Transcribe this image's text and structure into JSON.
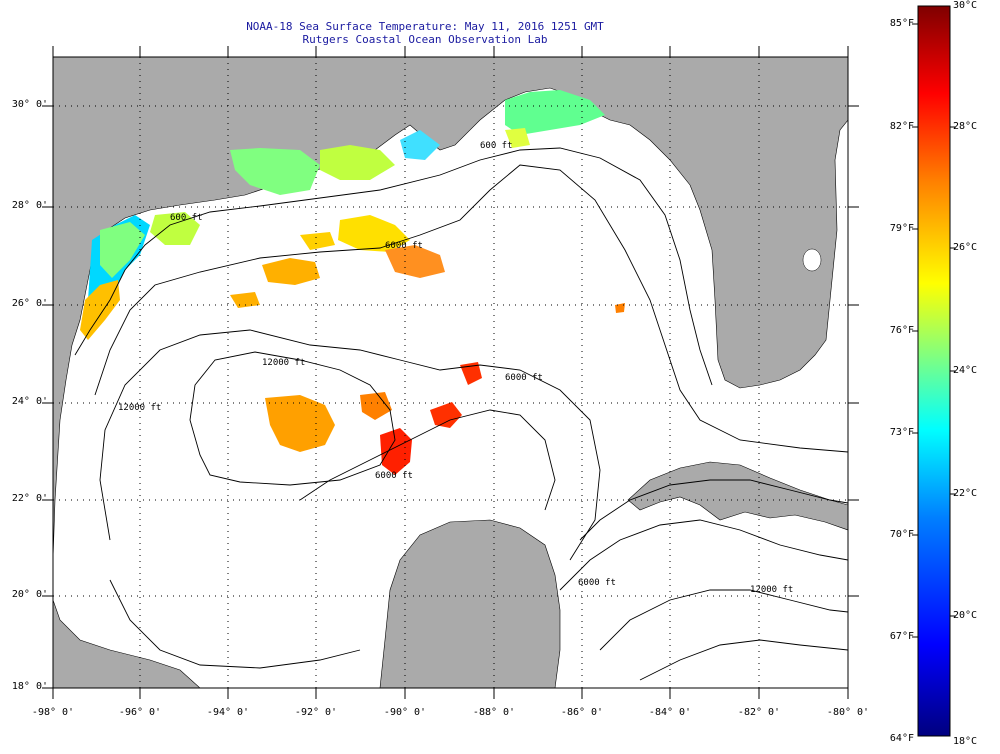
{
  "title": {
    "line1": "NOAA-18 Sea Surface Temperature:  May 11, 2016 1251 GMT",
    "line2": "Rutgers Coastal Ocean Observation Lab"
  },
  "lat_ticks": [
    "30° 0'",
    "28° 0'",
    "26° 0'",
    "24° 0'",
    "22° 0'",
    "20° 0'",
    "18° 0'"
  ],
  "lon_ticks": [
    "-98° 0'",
    "-96° 0'",
    "-94° 0'",
    "-92° 0'",
    "-90° 0'",
    "-88° 0'",
    "-86° 0'",
    "-84° 0'",
    "-82° 0'",
    "-80° 0'"
  ],
  "isobath_labels": [
    "600 ft",
    "600 ft",
    "6000 ft",
    "12000 ft",
    "6000 ft",
    "6000 ft",
    "12000 ft",
    "6000 ft",
    "12000 ft"
  ],
  "colorbar": {
    "fahrenheit": [
      "85°F",
      "82°F",
      "79°F",
      "76°F",
      "73°F",
      "70°F",
      "67°F",
      "64°F"
    ],
    "celsius": [
      "30°C",
      "28°C",
      "26°C",
      "24°C",
      "22°C",
      "20°C",
      "18°C"
    ],
    "colors": [
      "#00007f",
      "#0000ff",
      "#0080ff",
      "#00ffff",
      "#80ff80",
      "#ffff00",
      "#ff8000",
      "#ff0000",
      "#7f0000"
    ]
  },
  "colors": {
    "land": "#aaaaaa",
    "water": "#ffffff",
    "title": "#1a1aa0"
  }
}
